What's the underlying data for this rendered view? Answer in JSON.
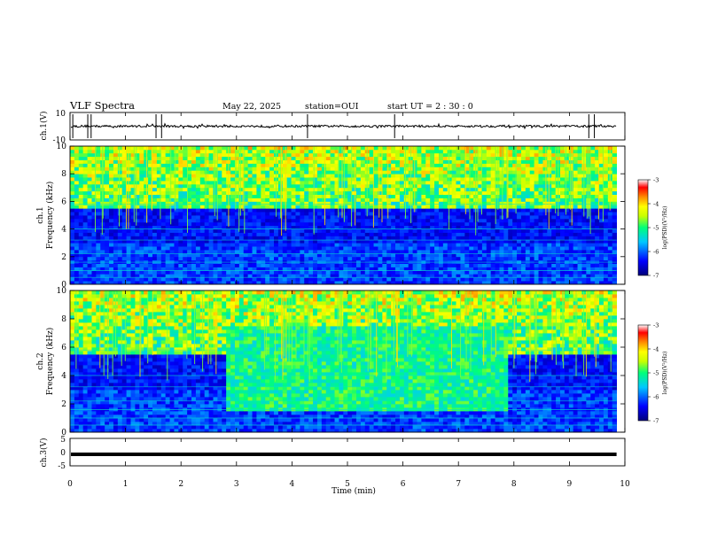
{
  "header": {
    "title": "VLF Spectra",
    "date": "May 22, 2025",
    "station": "station=OUI",
    "start_ut": "start UT = 2 : 30 : 0"
  },
  "chart_data": [
    {
      "type": "line",
      "name": "ch1-waveform",
      "ylabel": "ch.1(V)",
      "ylim": [
        -10,
        10
      ],
      "yticklabels": [
        "10",
        "-10"
      ],
      "baseline": 0,
      "spikes_min": [
        0.05,
        0.32,
        0.38,
        1.55,
        1.65,
        4.28,
        5.85,
        9.35,
        9.45
      ]
    },
    {
      "type": "heatmap",
      "name": "ch1-spectrogram",
      "ylabel": "ch.1\nFrequency (kHz)",
      "ylabel_line1": "ch.1",
      "ylabel_line2": "Frequency (kHz)",
      "ylim": [
        0,
        10
      ],
      "yticks": [
        "0",
        "2",
        "4",
        "6",
        "8",
        "10"
      ],
      "colorbar": {
        "label": "log(PSD)(V²/Hz)",
        "range": [
          -7,
          -3
        ],
        "ticks": [
          "-3",
          "-4",
          "-5",
          "-6",
          "-7"
        ],
        "colors": [
          "#000080",
          "#0000ff",
          "#00c8ff",
          "#00ff80",
          "#c8ff00",
          "#ffff00",
          "#ff8000",
          "#ff0000",
          "#ffffff"
        ]
      },
      "emission_band_khz": [
        5.5,
        10
      ],
      "active_interval_min": null
    },
    {
      "type": "heatmap",
      "name": "ch2-spectrogram",
      "ylabel_line1": "ch.2",
      "ylabel_line2": "Frequency (kHz)",
      "ylim": [
        0,
        10
      ],
      "yticks": [
        "0",
        "2",
        "4",
        "6",
        "8",
        "10"
      ],
      "colorbar": {
        "label": "log(PSD)(V²/Hz)",
        "range": [
          -7,
          -3
        ],
        "ticks": [
          "-3",
          "-4",
          "-5",
          "-6",
          "-7"
        ]
      },
      "emission_band_khz": [
        5.5,
        10
      ],
      "active_interval_min": [
        2.85,
        7.9
      ]
    },
    {
      "type": "line",
      "name": "ch3-waveform",
      "ylabel": "ch.3(V)",
      "ylim": [
        -5,
        5
      ],
      "yticklabels": [
        "5",
        "0",
        "-5"
      ],
      "level": -0.8
    }
  ],
  "xaxis": {
    "label": "Time (min)",
    "range": [
      0,
      10
    ],
    "ticks": [
      "0",
      "1",
      "2",
      "3",
      "4",
      "5",
      "6",
      "7",
      "8",
      "9",
      "10"
    ],
    "data_end_min": 9.85
  }
}
